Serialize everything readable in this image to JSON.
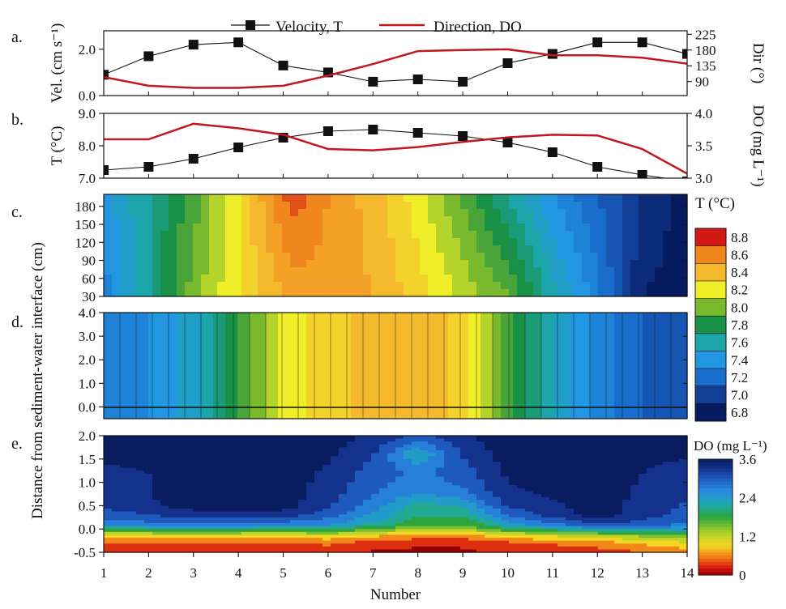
{
  "legend": {
    "velocity": "Velocity, T",
    "direction": "Direction, DO"
  },
  "colors": {
    "series_black": "#111111",
    "series_red": "#c0181f",
    "frame": "#111111"
  },
  "panel_labels": [
    "a.",
    "b.",
    "c.",
    "d.",
    "e."
  ],
  "x_axis": {
    "label": "Number",
    "ticks": [
      "1",
      "2",
      "3",
      "4",
      "5",
      "6",
      "7",
      "8",
      "9",
      "10",
      "11",
      "12",
      "13",
      "14"
    ]
  },
  "shared_ylabel": "Distance from sediment-water interface (cm)",
  "chart_data": [
    {
      "panel": "a",
      "type": "line",
      "x": [
        1,
        2,
        3,
        4,
        5,
        6,
        7,
        8,
        9,
        10,
        11,
        12,
        13,
        14
      ],
      "ylabel": "Vel. (cm s⁻¹)",
      "ylim": [
        0,
        2.8
      ],
      "yticks": [
        "0.0",
        "2.0"
      ],
      "y2label": "Dir (°)",
      "y2lim": [
        50,
        235
      ],
      "y2ticks": [
        "90",
        "135",
        "180",
        "225"
      ],
      "series": [
        {
          "name": "Velocity",
          "axis": "left",
          "marker": "square",
          "values": [
            0.9,
            1.7,
            2.2,
            2.3,
            1.3,
            1.0,
            0.6,
            0.7,
            0.6,
            1.4,
            1.8,
            2.3,
            2.3,
            1.8
          ]
        },
        {
          "name": "Direction",
          "axis": "right",
          "marker": "none",
          "values": [
            103,
            78,
            72,
            72,
            78,
            107,
            140,
            177,
            180,
            182,
            165,
            165,
            158,
            141
          ]
        }
      ]
    },
    {
      "panel": "b",
      "type": "line",
      "x": [
        1,
        2,
        3,
        4,
        5,
        6,
        7,
        8,
        9,
        10,
        11,
        12,
        13,
        14
      ],
      "ylabel": "T (°C)",
      "ylim": [
        7.0,
        9.0
      ],
      "yticks": [
        "7.0",
        "8.0",
        "9.0"
      ],
      "y2label": "DO (mg L⁻¹)",
      "y2lim": [
        3.0,
        4.0
      ],
      "y2ticks": [
        "3.0",
        "3.5",
        "4.0"
      ],
      "series": [
        {
          "name": "T",
          "axis": "left",
          "marker": "square",
          "values": [
            7.25,
            7.35,
            7.6,
            7.95,
            8.25,
            8.45,
            8.5,
            8.4,
            8.3,
            8.1,
            7.8,
            7.35,
            7.1,
            6.9
          ]
        },
        {
          "name": "DO",
          "axis": "right",
          "marker": "none",
          "values": [
            3.6,
            3.6,
            3.84,
            3.77,
            3.67,
            3.45,
            3.43,
            3.48,
            3.56,
            3.63,
            3.67,
            3.66,
            3.45,
            3.07
          ]
        }
      ]
    },
    {
      "panel": "c",
      "type": "heatmap",
      "colorbar": "T",
      "x": [
        1,
        2,
        3,
        4,
        5,
        6,
        7,
        8,
        9,
        10,
        11,
        12,
        13,
        14
      ],
      "ylim": [
        30,
        200
      ],
      "yticks": [
        "30",
        "60",
        "90",
        "120",
        "150",
        "180"
      ],
      "x_knots": [
        1,
        3,
        4,
        5,
        5.3,
        6,
        7,
        8,
        10,
        11,
        12,
        13,
        14
      ],
      "y_top": [
        7.4,
        7.9,
        8.25,
        8.65,
        8.7,
        8.55,
        8.4,
        8.2,
        7.65,
        7.35,
        7.15,
        6.95,
        6.8
      ],
      "y_bottom": [
        7.3,
        8.0,
        8.25,
        8.45,
        8.5,
        8.5,
        8.45,
        8.3,
        7.95,
        7.6,
        7.3,
        6.85,
        6.8
      ]
    },
    {
      "panel": "d",
      "type": "heatmap",
      "colorbar": "T",
      "x": [
        1,
        2,
        3,
        4,
        5,
        6,
        7,
        8,
        9,
        10,
        11,
        12,
        13,
        14
      ],
      "ylim": [
        -0.5,
        4.0
      ],
      "yticks": [
        "0.0",
        "1.0",
        "2.0",
        "3.0",
        "4.0"
      ],
      "x_knots": [
        1,
        2,
        3,
        4,
        5,
        6,
        7,
        8,
        9,
        10,
        11,
        12,
        13,
        14
      ],
      "values": [
        7.35,
        7.35,
        7.5,
        7.85,
        8.2,
        8.3,
        8.4,
        8.45,
        8.3,
        7.9,
        7.55,
        7.3,
        7.15,
        7.1
      ]
    },
    {
      "panel": "e",
      "type": "heatmap",
      "colorbar": "DO",
      "x": [
        1,
        2,
        3,
        4,
        5,
        6,
        7,
        8,
        9,
        10,
        11,
        12,
        13,
        14
      ],
      "ylim": [
        -0.5,
        2.0
      ],
      "yticks": [
        "-0.5",
        "0.0",
        "0.5",
        "1.0",
        "1.5",
        "2.0"
      ],
      "depth_knots": [
        -0.5,
        -0.3,
        -0.15,
        -0.05,
        0.1,
        0.3,
        0.5,
        0.8,
        1.2,
        1.6,
        2.0
      ],
      "x_knots": [
        1,
        3,
        5,
        6,
        7,
        8,
        9,
        10,
        12,
        14
      ],
      "grid": [
        [
          0.2,
          0.2,
          0.2,
          0.3,
          0.1,
          0.1,
          0.1,
          0.2,
          0.3,
          0.6
        ],
        [
          0.4,
          0.4,
          0.4,
          0.5,
          0.3,
          0.2,
          0.2,
          0.4,
          0.6,
          1.0
        ],
        [
          0.9,
          0.9,
          0.9,
          1.0,
          0.8,
          0.6,
          0.6,
          0.9,
          1.2,
          1.6
        ],
        [
          1.6,
          1.8,
          1.6,
          1.7,
          1.4,
          1.1,
          1.1,
          1.6,
          2.0,
          2.2
        ],
        [
          2.6,
          2.9,
          2.7,
          2.6,
          2.2,
          1.7,
          1.7,
          2.4,
          3.2,
          2.8
        ],
        [
          3.0,
          3.3,
          3.3,
          3.0,
          2.5,
          2.0,
          2.0,
          2.9,
          3.6,
          3.0
        ],
        [
          3.2,
          3.6,
          3.6,
          3.2,
          2.7,
          2.1,
          2.3,
          3.2,
          3.6,
          3.1
        ],
        [
          3.3,
          3.6,
          3.6,
          3.3,
          2.9,
          2.6,
          2.8,
          3.4,
          3.6,
          3.2
        ],
        [
          3.3,
          3.6,
          3.6,
          3.4,
          3.0,
          2.8,
          3.0,
          3.5,
          3.6,
          3.3
        ],
        [
          3.6,
          3.6,
          3.6,
          3.5,
          3.2,
          2.2,
          3.2,
          3.6,
          3.6,
          3.5
        ],
        [
          3.6,
          3.6,
          3.6,
          3.6,
          3.4,
          3.1,
          3.4,
          3.6,
          3.6,
          3.6
        ]
      ]
    }
  ],
  "colorbar_T": {
    "title": "T (°C)",
    "labels": [
      "8.8",
      "8.6",
      "8.4",
      "8.2",
      "8.0",
      "7.8",
      "7.6",
      "7.4",
      "7.2",
      "7.0",
      "6.8"
    ],
    "min": 6.8,
    "max": 8.8
  },
  "colorbar_DO": {
    "title": "DO (mg L⁻¹)",
    "labels": [
      "3.6",
      "2.4",
      "1.2",
      "0"
    ],
    "min": 0,
    "max": 3.6
  }
}
